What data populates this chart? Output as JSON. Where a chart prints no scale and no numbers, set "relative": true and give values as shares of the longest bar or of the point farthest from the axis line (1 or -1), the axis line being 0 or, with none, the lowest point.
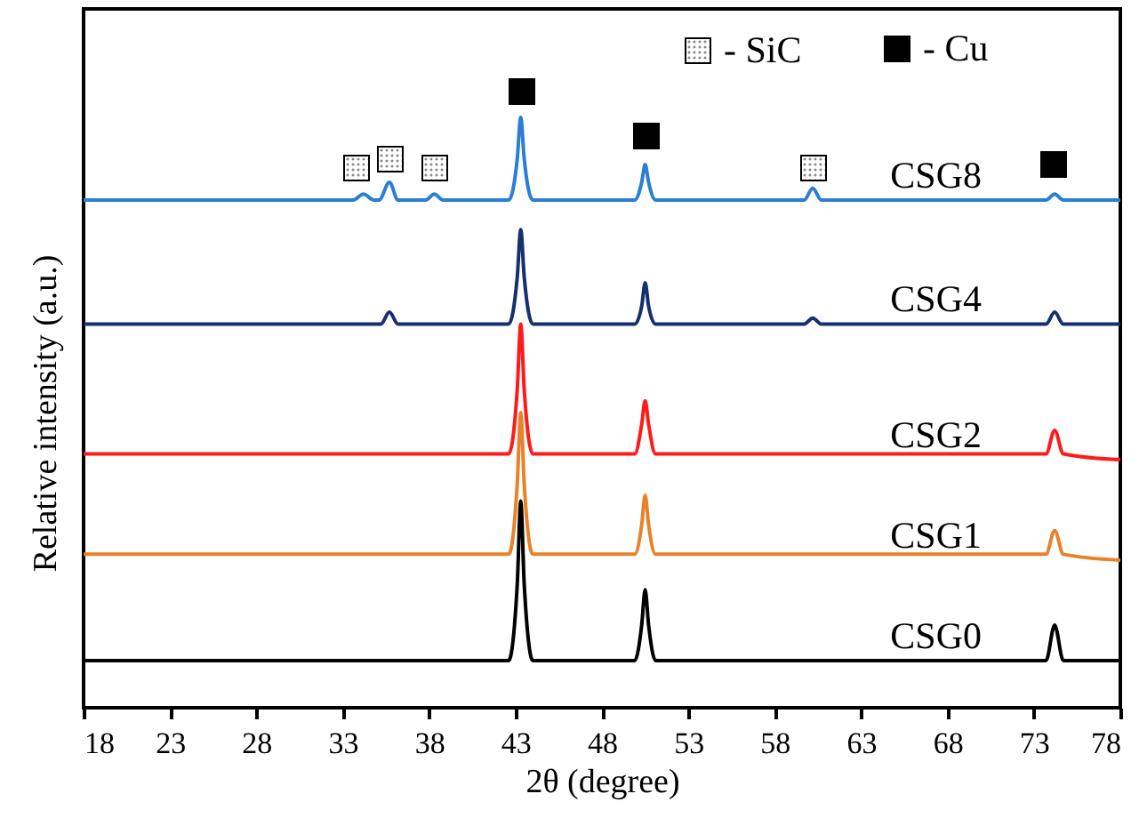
{
  "chart_data": {
    "type": "line",
    "relative": true,
    "xlabel": "2θ (degree)",
    "ylabel": "Relative intensity (a.u.)",
    "xlim": [
      18,
      78
    ],
    "xticks": [
      18,
      23,
      28,
      33,
      38,
      43,
      48,
      53,
      58,
      63,
      68,
      73,
      78
    ],
    "annotations": [
      "- SiC",
      "- Cu"
    ],
    "series": [
      {
        "name": "CSG8",
        "color": "#2a7fd4",
        "x": [
          18,
          30,
          33.6,
          34.2,
          34.8,
          35.1,
          35.7,
          36.2,
          37.8,
          38.3,
          38.8,
          42.6,
          43.1,
          43.3,
          43.5,
          44.0,
          49.9,
          50.3,
          50.5,
          50.7,
          51.1,
          59.7,
          60.2,
          60.7,
          73.7,
          74.2,
          74.7,
          78
        ],
        "values": [
          0.86,
          0.86,
          0.86,
          0.87,
          0.86,
          0.86,
          0.89,
          0.86,
          0.86,
          0.87,
          0.86,
          0.86,
          0.93,
          1,
          0.93,
          0.86,
          0.86,
          0.89,
          0.92,
          0.89,
          0.86,
          0.86,
          0.88,
          0.86,
          0.86,
          0.87,
          0.86,
          0.86
        ]
      },
      {
        "name": "CSG4",
        "color": "#14306e",
        "x": [
          18,
          30,
          35.2,
          35.7,
          36.2,
          42.6,
          43.1,
          43.3,
          43.5,
          44.0,
          49.9,
          50.3,
          50.5,
          50.7,
          51.1,
          59.7,
          60.2,
          60.7,
          73.7,
          74.2,
          74.7,
          78
        ],
        "values": [
          0.65,
          0.65,
          0.65,
          0.67,
          0.65,
          0.65,
          0.73,
          0.81,
          0.73,
          0.65,
          0.65,
          0.68,
          0.72,
          0.68,
          0.65,
          0.65,
          0.66,
          0.65,
          0.65,
          0.67,
          0.65,
          0.65
        ]
      },
      {
        "name": "CSG2",
        "color": "#ff1a1a",
        "x": [
          18,
          30,
          42.6,
          43.1,
          43.3,
          43.5,
          44.0,
          49.9,
          50.3,
          50.5,
          50.7,
          51.1,
          73.7,
          74.2,
          74.7,
          78
        ],
        "values": [
          0.43,
          0.43,
          0.43,
          0.54,
          0.65,
          0.54,
          0.43,
          0.43,
          0.48,
          0.52,
          0.48,
          0.43,
          0.43,
          0.47,
          0.43,
          0.42
        ]
      },
      {
        "name": "CSG1",
        "color": "#e8822a",
        "x": [
          18,
          30,
          42.6,
          43.1,
          43.3,
          43.5,
          44.0,
          49.9,
          50.3,
          50.5,
          50.7,
          51.1,
          73.7,
          74.2,
          74.7,
          78
        ],
        "values": [
          0.26,
          0.26,
          0.26,
          0.38,
          0.5,
          0.38,
          0.26,
          0.26,
          0.31,
          0.36,
          0.31,
          0.26,
          0.26,
          0.3,
          0.26,
          0.25
        ]
      },
      {
        "name": "CSG0",
        "color": "#000000",
        "x": [
          18,
          30,
          42.6,
          43.1,
          43.3,
          43.5,
          44.0,
          49.9,
          50.3,
          50.5,
          50.7,
          51.1,
          73.7,
          74.2,
          74.7,
          78
        ],
        "values": [
          0.08,
          0.08,
          0.08,
          0.21,
          0.35,
          0.21,
          0.08,
          0.08,
          0.14,
          0.2,
          0.14,
          0.08,
          0.08,
          0.14,
          0.08,
          0.08
        ]
      }
    ]
  }
}
